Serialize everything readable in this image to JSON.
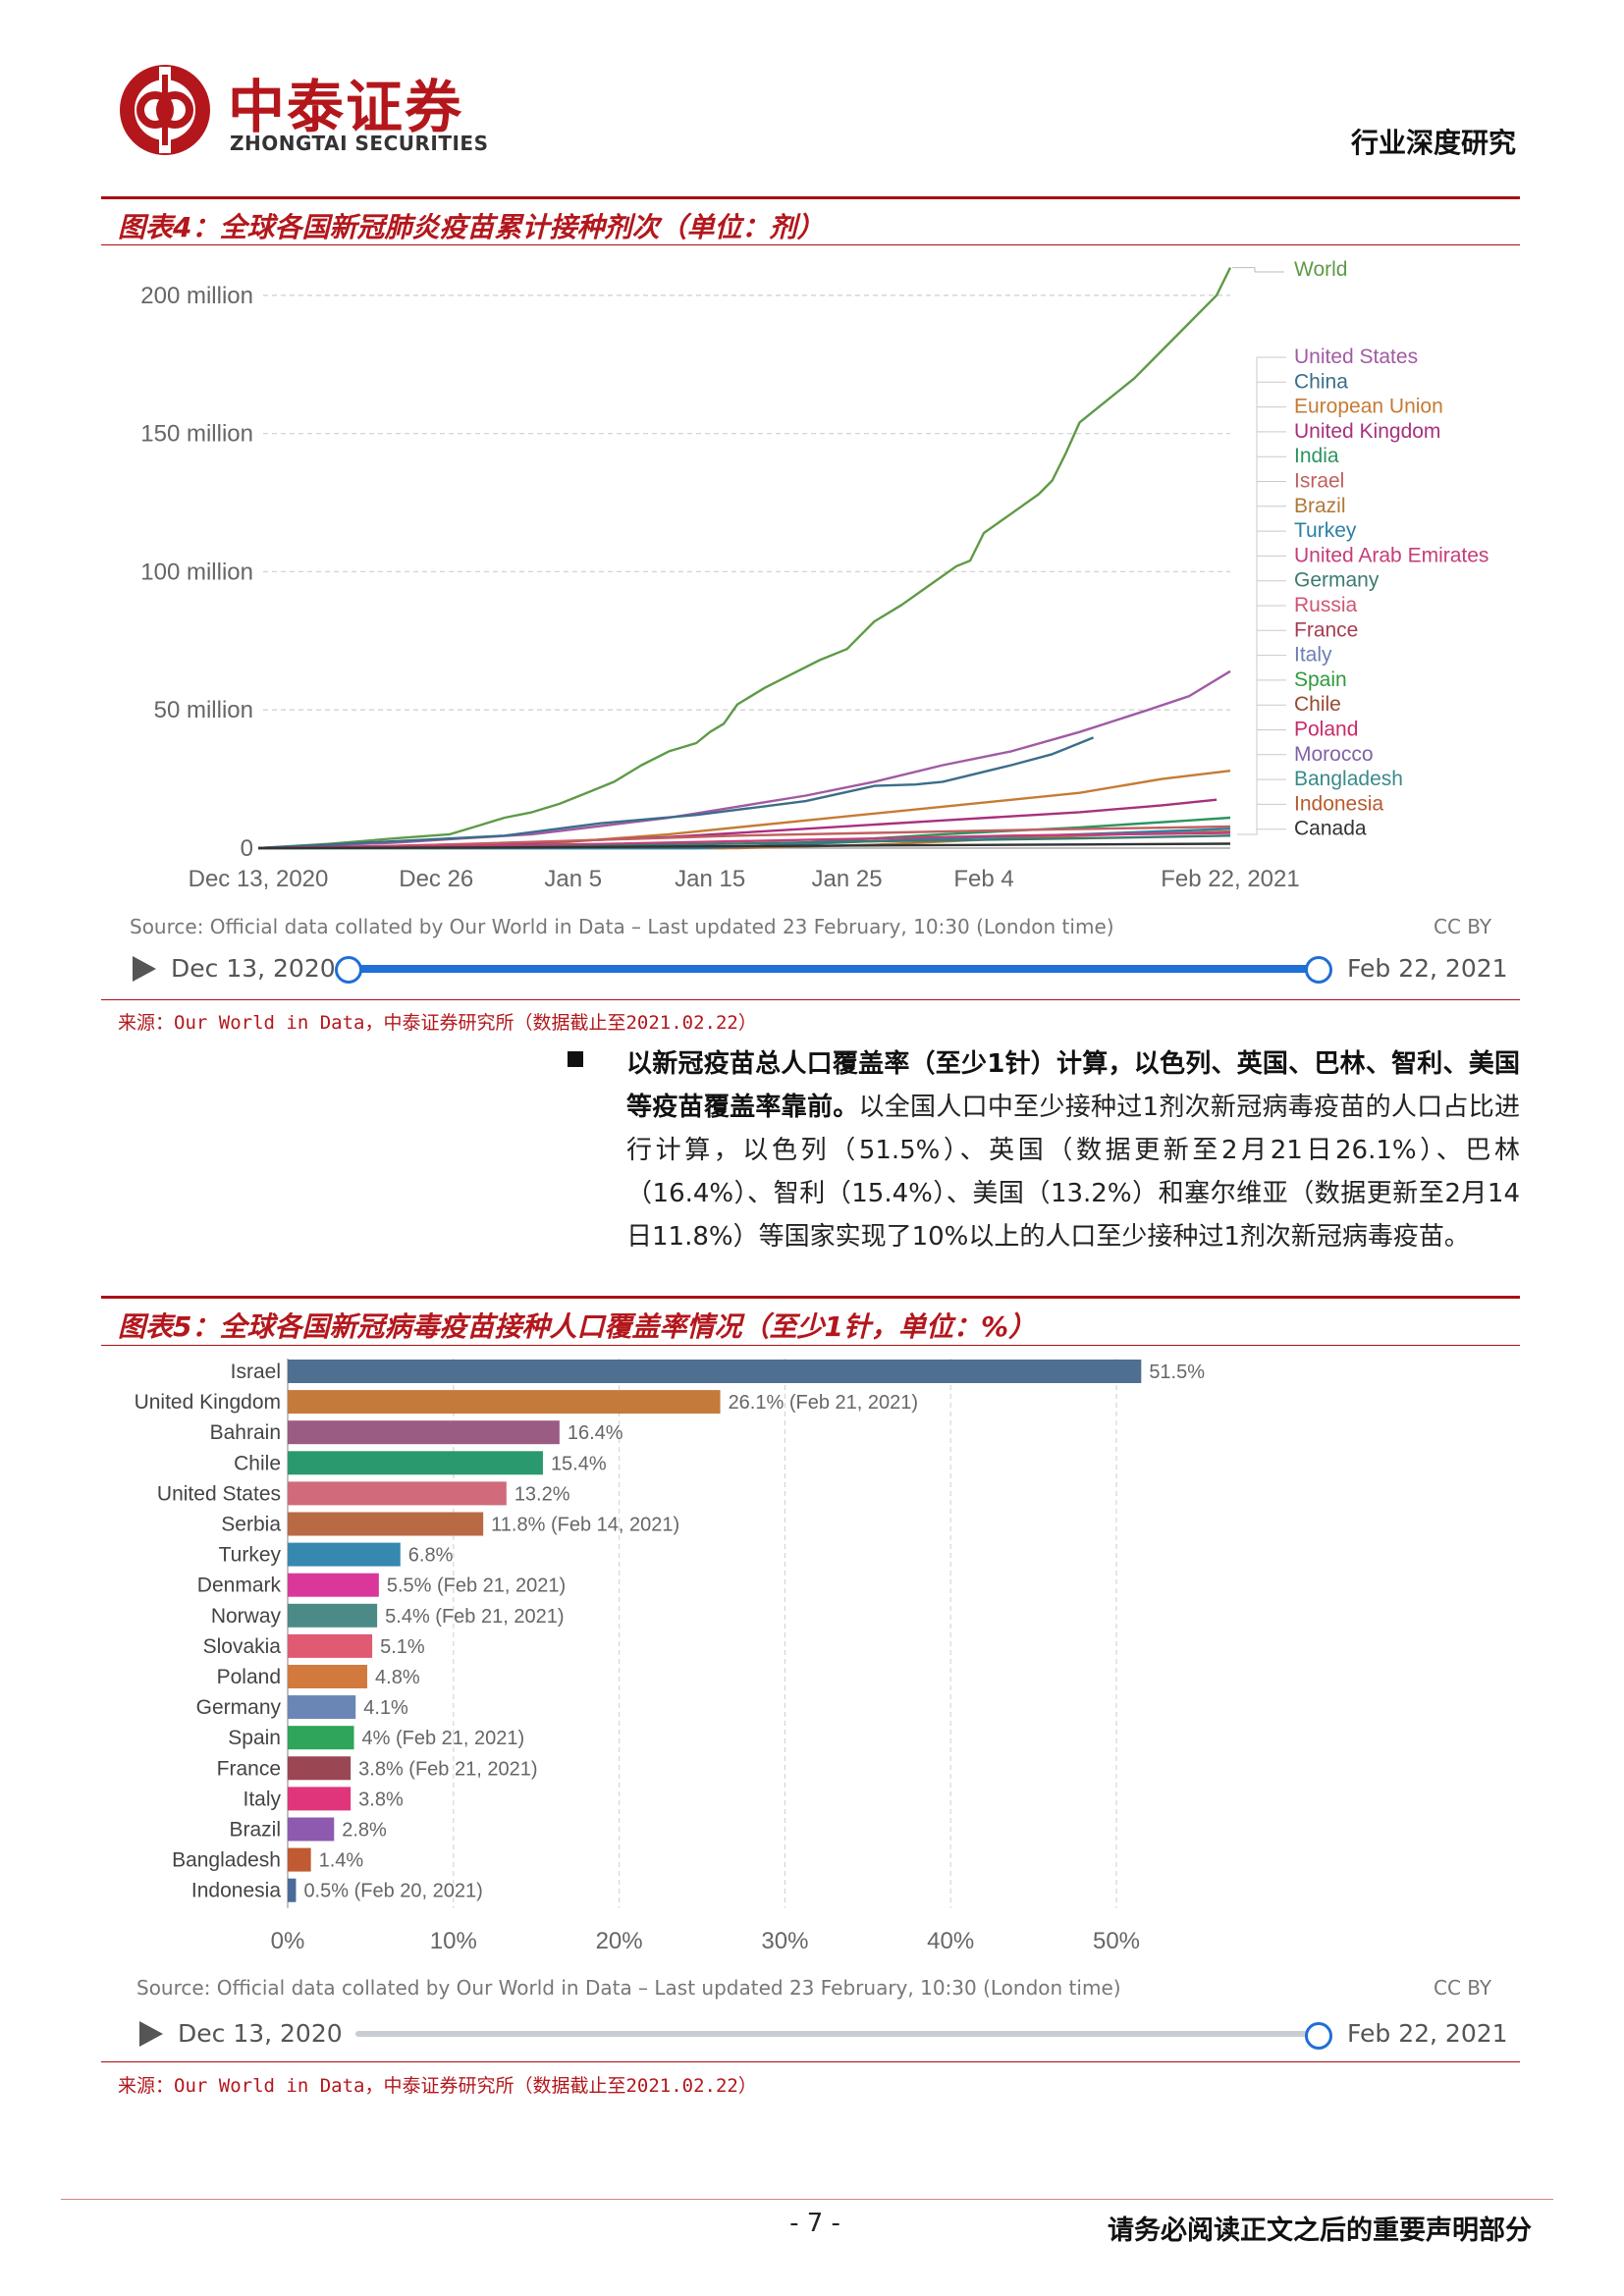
{
  "header": {
    "logo_cn": "中泰证券",
    "logo_en": "ZHONGTAI SECURITIES",
    "report_type": "行业深度研究"
  },
  "figure4": {
    "title": "图表4：全球各国新冠肺炎疫苗累计接种剂次（单位：剂）",
    "source_note": "来源：Our World in Data，中泰证券研究所（数据截止至2021.02.22）",
    "owid_source": "Source: Official data collated by Our World in Data – Last updated 23 February, 10:30 (London time)",
    "cc_by": "CC BY",
    "timeline_start": "Dec 13, 2020",
    "timeline_end": "Feb 22, 2021"
  },
  "paragraph": {
    "lead": "以新冠疫苗总人口覆盖率（至少1针）计算，以色列、英国、巴林、智利、美国等疫苗覆盖率靠前。",
    "body": "以全国人口中至少接种过1剂次新冠病毒疫苗的人口占比进行计算，以色列（51.5%）、英国（数据更新至2月21日26.1%）、巴林（16.4%）、智利（15.4%）、美国（13.2%）和塞尔维亚（数据更新至2月14日11.8%）等国家实现了10%以上的人口至少接种过1剂次新冠病毒疫苗。"
  },
  "figure5": {
    "title": "图表5：全球各国新冠病毒疫苗接种人口覆盖率情况（至少1针，单位：%）",
    "source_note": "来源：Our World in Data，中泰证券研究所（数据截止至2021.02.22）",
    "owid_source": "Source: Official data collated by Our World in Data – Last updated 23 February, 10:30 (London time)",
    "cc_by": "CC BY",
    "timeline_start": "Dec 13, 2020",
    "timeline_end": "Feb 22, 2021"
  },
  "chart_data": [
    {
      "type": "line",
      "y_ticks": [
        "0",
        "50 million",
        "100 million",
        "150 million",
        "200 million"
      ],
      "y_tick_values": [
        0,
        50,
        100,
        150,
        200
      ],
      "ylim": [
        0,
        212
      ],
      "x_ticks": [
        "Dec 13, 2020",
        "Dec 26",
        "Jan 5",
        "Jan 15",
        "Jan 25",
        "Feb 4",
        "Feb 22, 2021"
      ],
      "x_tick_days": [
        0,
        13,
        23,
        33,
        43,
        53,
        71
      ],
      "xlim": [
        0,
        71
      ],
      "grid": true,
      "legend_position": "right",
      "series": [
        {
          "name": "World",
          "color": "#5e9a47",
          "points": [
            [
              0,
              0
            ],
            [
              5,
              1.5
            ],
            [
              10,
              3.5
            ],
            [
              14,
              5
            ],
            [
              16,
              8
            ],
            [
              18,
              11
            ],
            [
              20,
              13
            ],
            [
              22,
              16
            ],
            [
              24,
              20
            ],
            [
              26,
              24
            ],
            [
              28,
              30
            ],
            [
              30,
              35
            ],
            [
              32,
              38
            ],
            [
              33,
              42
            ],
            [
              34,
              45
            ],
            [
              35,
              52
            ],
            [
              37,
              58
            ],
            [
              39,
              63
            ],
            [
              41,
              68
            ],
            [
              43,
              72
            ],
            [
              45,
              82
            ],
            [
              47,
              88
            ],
            [
              49,
              95
            ],
            [
              51,
              102
            ],
            [
              52,
              104
            ],
            [
              53,
              114
            ],
            [
              55,
              121
            ],
            [
              57,
              128
            ],
            [
              58,
              133
            ],
            [
              59,
              143
            ],
            [
              60,
              154
            ],
            [
              62,
              162
            ],
            [
              64,
              170
            ],
            [
              66,
              180
            ],
            [
              68,
              190
            ],
            [
              70,
              200
            ],
            [
              71,
              210
            ]
          ]
        },
        {
          "name": "United States",
          "color": "#a15aa3",
          "points": [
            [
              0,
              0
            ],
            [
              10,
              2
            ],
            [
              15,
              3.5
            ],
            [
              20,
              5
            ],
            [
              25,
              8
            ],
            [
              30,
              11
            ],
            [
              35,
              15
            ],
            [
              40,
              19
            ],
            [
              45,
              24
            ],
            [
              50,
              30
            ],
            [
              55,
              35
            ],
            [
              60,
              42
            ],
            [
              65,
              50
            ],
            [
              68,
              55
            ],
            [
              71,
              64
            ]
          ]
        },
        {
          "name": "China",
          "color": "#3b6d8a",
          "points": [
            [
              0,
              0
            ],
            [
              18,
              4.5
            ],
            [
              25,
              9
            ],
            [
              32,
              12
            ],
            [
              40,
              17
            ],
            [
              45,
              22.5
            ],
            [
              48,
              23
            ],
            [
              50,
              24
            ],
            [
              55,
              30
            ],
            [
              58,
              34
            ],
            [
              61,
              40
            ]
          ]
        },
        {
          "name": "European Union",
          "color": "#c57b34",
          "points": [
            [
              0,
              0
            ],
            [
              16,
              0.3
            ],
            [
              22,
              2
            ],
            [
              30,
              5
            ],
            [
              40,
              10
            ],
            [
              50,
              15
            ],
            [
              60,
              20
            ],
            [
              66,
              25
            ],
            [
              71,
              28
            ]
          ]
        },
        {
          "name": "United Kingdom",
          "color": "#a8307d",
          "points": [
            [
              0,
              0
            ],
            [
              10,
              0.8
            ],
            [
              20,
              2
            ],
            [
              30,
              4
            ],
            [
              40,
              7
            ],
            [
              50,
              10
            ],
            [
              60,
              13
            ],
            [
              66,
              15.5
            ],
            [
              70,
              17.5
            ]
          ]
        },
        {
          "name": "India",
          "color": "#2a9460",
          "points": [
            [
              0,
              0
            ],
            [
              34,
              0
            ],
            [
              40,
              2
            ],
            [
              50,
              5
            ],
            [
              60,
              7.5
            ],
            [
              68,
              10
            ],
            [
              71,
              11
            ]
          ]
        },
        {
          "name": "Israel",
          "color": "#c25f5f",
          "points": [
            [
              0,
              0
            ],
            [
              6,
              0.3
            ],
            [
              15,
              1.5
            ],
            [
              25,
              3
            ],
            [
              35,
              4.5
            ],
            [
              45,
              5.5
            ],
            [
              55,
              6.5
            ],
            [
              65,
              7.3
            ],
            [
              71,
              7.8
            ]
          ]
        },
        {
          "name": "Brazil",
          "color": "#b0773a",
          "points": [
            [
              0,
              0
            ],
            [
              35,
              0
            ],
            [
              45,
              1.2
            ],
            [
              55,
              3.5
            ],
            [
              63,
              5
            ],
            [
              71,
              6
            ]
          ]
        },
        {
          "name": "Turkey",
          "color": "#2d7fa8",
          "points": [
            [
              0,
              0
            ],
            [
              32,
              0
            ],
            [
              40,
              1.5
            ],
            [
              50,
              3.5
            ],
            [
              60,
              5
            ],
            [
              71,
              7
            ]
          ]
        },
        {
          "name": "United Arab Emirates",
          "color": "#c63d7a",
          "points": [
            [
              0,
              0
            ],
            [
              10,
              0.5
            ],
            [
              25,
              1.5
            ],
            [
              40,
              3
            ],
            [
              55,
              4.5
            ],
            [
              71,
              5.5
            ]
          ]
        },
        {
          "name": "Germany",
          "color": "#3d7a72",
          "points": [
            [
              0,
              0
            ],
            [
              15,
              0.1
            ],
            [
              30,
              1.2
            ],
            [
              45,
              2.5
            ],
            [
              60,
              3.5
            ],
            [
              71,
              4.5
            ]
          ]
        },
        {
          "name": "Canada",
          "color": "#333333",
          "points": [
            [
              0,
              0
            ],
            [
              20,
              0.3
            ],
            [
              40,
              0.8
            ],
            [
              60,
              1.3
            ],
            [
              71,
              1.6
            ]
          ]
        }
      ],
      "legend": [
        "World",
        "United States",
        "China",
        "European Union",
        "United Kingdom",
        "India",
        "Israel",
        "Brazil",
        "Turkey",
        "United Arab Emirates",
        "Germany",
        "Russia",
        "France",
        "Italy",
        "Spain",
        "Chile",
        "Poland",
        "Morocco",
        "Bangladesh",
        "Indonesia",
        "Canada"
      ],
      "legend_colors": [
        "#5e9a47",
        "#a15aa3",
        "#3b6d8a",
        "#c57b34",
        "#a8307d",
        "#2a9460",
        "#c25f5f",
        "#b0773a",
        "#2d7fa8",
        "#c63d7a",
        "#3d7a72",
        "#d05572",
        "#a63d52",
        "#6c7eb5",
        "#2f9a3c",
        "#98492f",
        "#c92a6b",
        "#8062a5",
        "#3a8a8a",
        "#b85a2d",
        "#333333"
      ]
    },
    {
      "type": "bar",
      "orientation": "horizontal",
      "categories": [
        "Israel",
        "United Kingdom",
        "Bahrain",
        "Chile",
        "United States",
        "Serbia",
        "Turkey",
        "Denmark",
        "Norway",
        "Slovakia",
        "Poland",
        "Germany",
        "Spain",
        "France",
        "Italy",
        "Brazil",
        "Bangladesh",
        "Indonesia"
      ],
      "values": [
        51.5,
        26.1,
        16.4,
        15.4,
        13.2,
        11.8,
        6.8,
        5.5,
        5.4,
        5.1,
        4.8,
        4.1,
        4,
        3.8,
        3.8,
        2.8,
        1.4,
        0.5
      ],
      "value_labels": [
        "51.5%",
        "26.1% (Feb 21, 2021)",
        "16.4%",
        "15.4%",
        "13.2%",
        "11.8% (Feb 14, 2021)",
        "6.8%",
        "5.5% (Feb 21, 2021)",
        "5.4% (Feb 21, 2021)",
        "5.1%",
        "4.8%",
        "4.1%",
        "4% (Feb 21, 2021)",
        "3.8% (Feb 21, 2021)",
        "3.8%",
        "2.8%",
        "1.4%",
        "0.5% (Feb 20, 2021)"
      ],
      "colors": [
        "#4f6f90",
        "#c47a3a",
        "#9a5c82",
        "#2a9a6e",
        "#d06b7c",
        "#b86a45",
        "#3688b0",
        "#d9389a",
        "#4b8a87",
        "#e05a72",
        "#d27a3e",
        "#6a86b5",
        "#2ea55a",
        "#9a4653",
        "#e0357a",
        "#8e5ab0",
        "#c05a32",
        "#4c6a99"
      ],
      "x_ticks": [
        "0%",
        "10%",
        "20%",
        "30%",
        "40%",
        "50%"
      ],
      "x_tick_values": [
        0,
        10,
        20,
        30,
        40,
        50
      ],
      "xlim": [
        0,
        55
      ],
      "grid": true
    }
  ],
  "footer": {
    "page_number": "- 7 -",
    "note": "请务必阅读正文之后的重要声明部分"
  }
}
